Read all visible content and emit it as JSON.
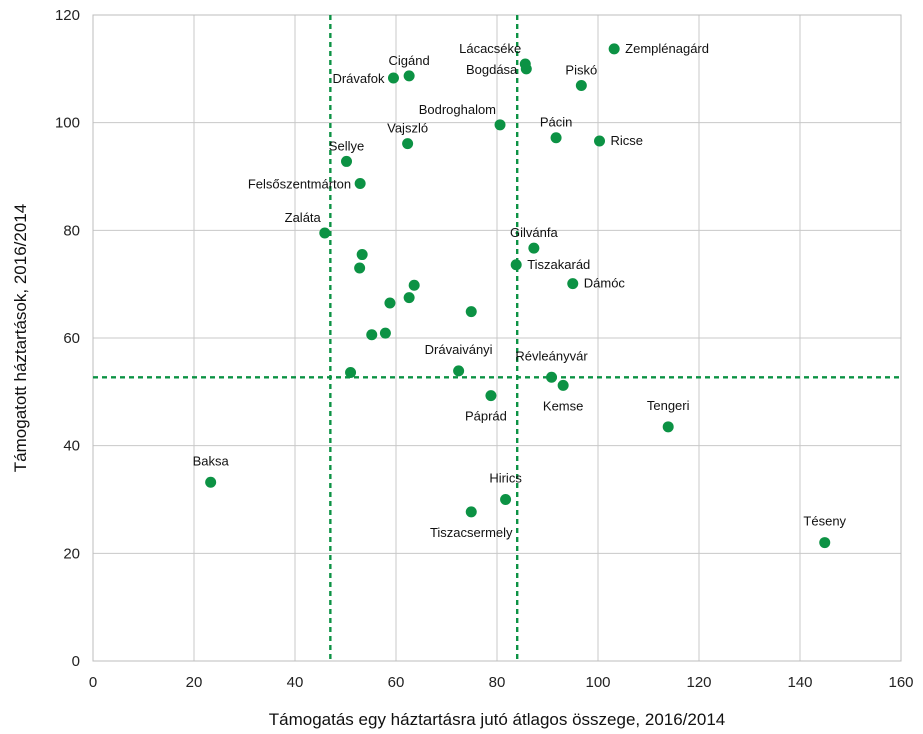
{
  "chart_data": {
    "type": "scatter",
    "xlabel": "Támogatás egy háztartásra jutó átlagos összege, 2016/2014",
    "ylabel": "Támogatott háztartások, 2016/2014",
    "xlim": [
      0,
      160
    ],
    "ylim": [
      0,
      120
    ],
    "x_ticks": [
      0,
      20,
      40,
      60,
      80,
      100,
      120,
      140,
      160
    ],
    "y_ticks": [
      0,
      20,
      40,
      60,
      80,
      100,
      120
    ],
    "grid": true,
    "point_color": "#0c9244",
    "reference_lines": {
      "x": [
        47,
        84
      ],
      "y": [
        52.7
      ],
      "color": "#0c9244",
      "style": "dashed"
    },
    "points": [
      {
        "x": 59.5,
        "y": 108.3,
        "label": "Drávafok",
        "anchor": "left"
      },
      {
        "x": 62.6,
        "y": 108.7,
        "label": "Cigánd",
        "anchor": "above"
      },
      {
        "x": 85.6,
        "y": 110.9,
        "label": "Lácacséke",
        "anchor": "above-left"
      },
      {
        "x": 85.8,
        "y": 110.0,
        "label": "Bogdása",
        "anchor": "left"
      },
      {
        "x": 103.2,
        "y": 113.7,
        "label": "Zemplénagárd",
        "anchor": "right"
      },
      {
        "x": 96.7,
        "y": 106.9,
        "label": "Piskó",
        "anchor": "above"
      },
      {
        "x": 80.6,
        "y": 99.6,
        "label": "Bodroghalom",
        "anchor": "above-left"
      },
      {
        "x": 62.3,
        "y": 96.1,
        "label": "Vajszló",
        "anchor": "above"
      },
      {
        "x": 91.7,
        "y": 97.2,
        "label": "Pácin",
        "anchor": "above"
      },
      {
        "x": 100.3,
        "y": 96.6,
        "label": "Ricse",
        "anchor": "right"
      },
      {
        "x": 50.2,
        "y": 92.8,
        "label": "Sellye",
        "anchor": "above"
      },
      {
        "x": 52.9,
        "y": 88.7,
        "label": "Felsőszentmárton",
        "anchor": "left"
      },
      {
        "x": 45.9,
        "y": 79.5,
        "label": "Zaláta",
        "anchor": "above-left"
      },
      {
        "x": 87.3,
        "y": 76.7,
        "label": "Gilvánfa",
        "anchor": "above"
      },
      {
        "x": 83.8,
        "y": 73.6,
        "label": "Tiszakarád",
        "anchor": "right"
      },
      {
        "x": 95.0,
        "y": 70.1,
        "label": "Dámóc",
        "anchor": "right"
      },
      {
        "x": 53.3,
        "y": 75.5,
        "label": ""
      },
      {
        "x": 52.8,
        "y": 73.0,
        "label": ""
      },
      {
        "x": 63.6,
        "y": 69.8,
        "label": ""
      },
      {
        "x": 62.6,
        "y": 67.5,
        "label": ""
      },
      {
        "x": 58.8,
        "y": 66.5,
        "label": ""
      },
      {
        "x": 74.9,
        "y": 64.9,
        "label": ""
      },
      {
        "x": 57.9,
        "y": 60.9,
        "label": ""
      },
      {
        "x": 55.2,
        "y": 60.6,
        "label": ""
      },
      {
        "x": 51.0,
        "y": 53.6,
        "label": ""
      },
      {
        "x": 72.4,
        "y": 53.9,
        "label": "Drávaiványi",
        "anchor": "above-far"
      },
      {
        "x": 90.8,
        "y": 52.7,
        "label": "Révleányvár",
        "anchor": "above-far"
      },
      {
        "x": 93.1,
        "y": 51.2,
        "label": "Kemse",
        "anchor": "below"
      },
      {
        "x": 78.8,
        "y": 49.3,
        "label": "Páprád",
        "anchor": "below-left"
      },
      {
        "x": 113.9,
        "y": 43.5,
        "label": "Tengeri",
        "anchor": "above-far"
      },
      {
        "x": 23.3,
        "y": 33.2,
        "label": "Baksa",
        "anchor": "above-far"
      },
      {
        "x": 81.7,
        "y": 30.0,
        "label": "Hirics",
        "anchor": "above-far"
      },
      {
        "x": 74.9,
        "y": 27.7,
        "label": "Tiszacsermely",
        "anchor": "below"
      },
      {
        "x": 144.9,
        "y": 22.0,
        "label": "Téseny",
        "anchor": "above-far"
      }
    ]
  }
}
